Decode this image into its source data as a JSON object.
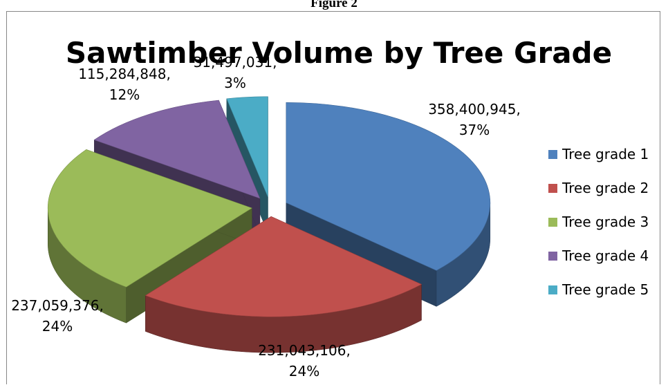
{
  "figure_caption": "Figure 2",
  "chart_data": {
    "type": "pie",
    "title": "Sawtimber Volume by Tree Grade",
    "legend_position": "right",
    "slices": [
      {
        "label": "Tree grade 1",
        "value": 358400945,
        "percent": "37%",
        "value_text": "358,400,945,",
        "color": "#4F81BD"
      },
      {
        "label": "Tree grade 2",
        "value": 231043106,
        "percent": "24%",
        "value_text": "231,043,106,",
        "color": "#C0504D"
      },
      {
        "label": "Tree grade 3",
        "value": 237059376,
        "percent": "24%",
        "value_text": "237,059,376,",
        "color": "#9BBB59"
      },
      {
        "label": "Tree grade 4",
        "value": 115284848,
        "percent": "12%",
        "value_text": "115,284,848,",
        "color": "#8064A2"
      },
      {
        "label": "Tree grade 5",
        "value": 31497031,
        "percent": "3%",
        "value_text": "31,497,031,",
        "color": "#4BACC6"
      }
    ]
  }
}
